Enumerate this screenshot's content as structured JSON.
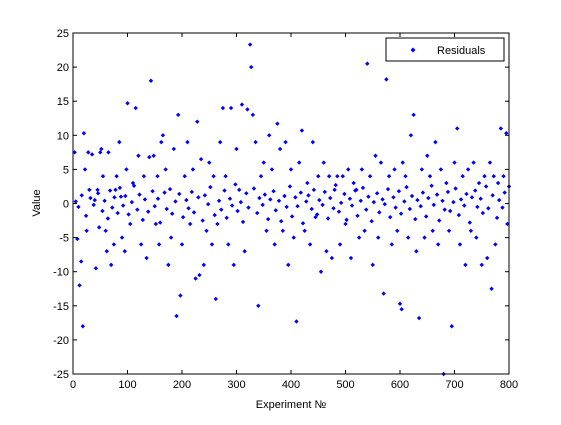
{
  "chart_data": {
    "type": "scatter",
    "title": "",
    "xlabel": "Experiment №",
    "ylabel": "Value",
    "xlim": [
      0,
      800
    ],
    "ylim": [
      -25,
      25
    ],
    "x_ticks": [
      "0",
      "100",
      "200",
      "300",
      "400",
      "500",
      "600",
      "700",
      "800"
    ],
    "y_ticks": [
      "25",
      "20",
      "15",
      "10",
      "5",
      "0",
      "-5",
      "-10",
      "-15",
      "-20",
      "-25"
    ],
    "grid": false,
    "legend": "top-right",
    "marker_color": "#0000ff",
    "series": [
      {
        "name": "Residuals",
        "points": [
          [
            3,
            7.5
          ],
          [
            8,
            -5.2
          ],
          [
            12,
            -12
          ],
          [
            15,
            -8.5
          ],
          [
            18,
            -18
          ],
          [
            20,
            10.3
          ],
          [
            22,
            5
          ],
          [
            25,
            -4
          ],
          [
            28,
            7.5
          ],
          [
            30,
            2
          ],
          [
            35,
            7.2
          ],
          [
            40,
            0.5
          ],
          [
            42,
            -9.5
          ],
          [
            45,
            2
          ],
          [
            48,
            -3.5
          ],
          [
            50,
            7.5
          ],
          [
            52,
            8
          ],
          [
            55,
            4
          ],
          [
            60,
            -4
          ],
          [
            62,
            -7
          ],
          [
            65,
            7.5
          ],
          [
            70,
            -9
          ],
          [
            75,
            -6
          ],
          [
            78,
            2
          ],
          [
            80,
            4
          ],
          [
            85,
            9
          ],
          [
            88,
            1
          ],
          [
            90,
            -5
          ],
          [
            95,
            -7
          ],
          [
            98,
            5
          ],
          [
            100,
            14.7
          ],
          [
            105,
            -3
          ],
          [
            110,
            3
          ],
          [
            115,
            14
          ],
          [
            120,
            7
          ],
          [
            125,
            -6
          ],
          [
            130,
            4
          ],
          [
            135,
            -8
          ],
          [
            140,
            6.8
          ],
          [
            143,
            18
          ],
          [
            148,
            7
          ],
          [
            152,
            -3
          ],
          [
            155,
            4
          ],
          [
            158,
            -6
          ],
          [
            162,
            9
          ],
          [
            165,
            10
          ],
          [
            170,
            5
          ],
          [
            175,
            -9
          ],
          [
            180,
            -5
          ],
          [
            185,
            8
          ],
          [
            190,
            -16.5
          ],
          [
            193,
            13
          ],
          [
            197,
            -13.5
          ],
          [
            200,
            -6
          ],
          [
            205,
            4
          ],
          [
            210,
            9
          ],
          [
            215,
            -3
          ],
          [
            220,
            5
          ],
          [
            225,
            -11
          ],
          [
            228,
            12
          ],
          [
            232,
            -10.5
          ],
          [
            235,
            6.5
          ],
          [
            240,
            -9
          ],
          [
            245,
            -4
          ],
          [
            250,
            6
          ],
          [
            255,
            -6
          ],
          [
            258,
            4
          ],
          [
            262,
            -14
          ],
          [
            265,
            -3
          ],
          [
            270,
            9
          ],
          [
            275,
            14
          ],
          [
            280,
            4
          ],
          [
            285,
            -6
          ],
          [
            290,
            14
          ],
          [
            295,
            -9
          ],
          [
            300,
            8
          ],
          [
            305,
            2
          ],
          [
            310,
            14.5
          ],
          [
            315,
            -7
          ],
          [
            320,
            13.8
          ],
          [
            325,
            23.3
          ],
          [
            327,
            20
          ],
          [
            330,
            13
          ],
          [
            335,
            9
          ],
          [
            340,
            -15
          ],
          [
            345,
            4
          ],
          [
            350,
            6
          ],
          [
            355,
            -4
          ],
          [
            360,
            10
          ],
          [
            365,
            5
          ],
          [
            370,
            -6
          ],
          [
            375,
            11.7
          ],
          [
            380,
            8
          ],
          [
            385,
            -4
          ],
          [
            390,
            9
          ],
          [
            395,
            -9
          ],
          [
            400,
            5
          ],
          [
            405,
            -5
          ],
          [
            410,
            -17.3
          ],
          [
            415,
            6
          ],
          [
            420,
            10.7
          ],
          [
            425,
            -4
          ],
          [
            430,
            3
          ],
          [
            435,
            -6
          ],
          [
            440,
            9
          ],
          [
            445,
            -2
          ],
          [
            450,
            4
          ],
          [
            455,
            -10
          ],
          [
            460,
            6
          ],
          [
            465,
            -7
          ],
          [
            470,
            4
          ],
          [
            475,
            -8
          ],
          [
            480,
            2
          ],
          [
            485,
            4
          ],
          [
            490,
            -6
          ],
          [
            495,
            4
          ],
          [
            500,
            -3
          ],
          [
            505,
            5
          ],
          [
            510,
            -8
          ],
          [
            515,
            3
          ],
          [
            520,
            2
          ],
          [
            525,
            -5
          ],
          [
            530,
            5
          ],
          [
            535,
            -4
          ],
          [
            540,
            20.5
          ],
          [
            545,
            4
          ],
          [
            550,
            -9
          ],
          [
            555,
            7
          ],
          [
            560,
            -5
          ],
          [
            565,
            6
          ],
          [
            570,
            -13.2
          ],
          [
            575,
            18.2
          ],
          [
            580,
            4
          ],
          [
            585,
            -6
          ],
          [
            590,
            5
          ],
          [
            595,
            -4
          ],
          [
            600,
            -14.7
          ],
          [
            603,
            -15.5
          ],
          [
            605,
            6
          ],
          [
            610,
            4
          ],
          [
            615,
            -5
          ],
          [
            620,
            10
          ],
          [
            625,
            13
          ],
          [
            630,
            -7
          ],
          [
            635,
            -16.8
          ],
          [
            640,
            5
          ],
          [
            645,
            -5
          ],
          [
            650,
            7
          ],
          [
            655,
            4
          ],
          [
            660,
            -4
          ],
          [
            665,
            9
          ],
          [
            670,
            -6
          ],
          [
            675,
            5
          ],
          [
            680,
            -25
          ],
          [
            685,
            3
          ],
          [
            690,
            -4
          ],
          [
            695,
            -18
          ],
          [
            700,
            6
          ],
          [
            705,
            11
          ],
          [
            710,
            -6
          ],
          [
            715,
            4
          ],
          [
            720,
            -9
          ],
          [
            725,
            5
          ],
          [
            730,
            -4
          ],
          [
            735,
            6
          ],
          [
            740,
            -5
          ],
          [
            745,
            3
          ],
          [
            750,
            -9
          ],
          [
            755,
            4
          ],
          [
            760,
            -8
          ],
          [
            765,
            6
          ],
          [
            768,
            -12.5
          ],
          [
            772,
            4
          ],
          [
            775,
            -6
          ],
          [
            780,
            3
          ],
          [
            785,
            11
          ],
          [
            790,
            4
          ],
          [
            795,
            10.3
          ],
          [
            797,
            -3
          ],
          [
            800,
            2.5
          ],
          [
            5,
            0.3
          ],
          [
            10,
            -0.5
          ],
          [
            16,
            1.2
          ],
          [
            24,
            -1.8
          ],
          [
            32,
            0.8
          ],
          [
            38,
            -0.2
          ],
          [
            46,
            1.5
          ],
          [
            54,
            -1.1
          ],
          [
            58,
            0.4
          ],
          [
            64,
            -2.2
          ],
          [
            68,
            1.9
          ],
          [
            72,
            -0.6
          ],
          [
            76,
            0.9
          ],
          [
            82,
            -1.4
          ],
          [
            86,
            2.3
          ],
          [
            92,
            -0.3
          ],
          [
            96,
            1.1
          ],
          [
            102,
            -1.6
          ],
          [
            108,
            0.2
          ],
          [
            112,
            2.6
          ],
          [
            118,
            -0.9
          ],
          [
            122,
            1.3
          ],
          [
            128,
            -2.4
          ],
          [
            132,
            0.6
          ],
          [
            138,
            -1.2
          ],
          [
            146,
            1.8
          ],
          [
            150,
            -0.4
          ],
          [
            156,
            0.7
          ],
          [
            160,
            -2.8
          ],
          [
            168,
            1.6
          ],
          [
            172,
            -0.8
          ],
          [
            178,
            2.1
          ],
          [
            182,
            -1.5
          ],
          [
            188,
            0.3
          ],
          [
            195,
            1.4
          ],
          [
            202,
            -2
          ],
          [
            208,
            0.5
          ],
          [
            212,
            -0.7
          ],
          [
            218,
            1.7
          ],
          [
            222,
            -1.3
          ],
          [
            230,
            0.9
          ],
          [
            238,
            -2.5
          ],
          [
            242,
            1.2
          ],
          [
            248,
            -0.1
          ],
          [
            252,
            2.4
          ],
          [
            260,
            -1.7
          ],
          [
            268,
            0.4
          ],
          [
            272,
            -0.9
          ],
          [
            278,
            1.9
          ],
          [
            282,
            -2.1
          ],
          [
            288,
            0.7
          ],
          [
            292,
            -0.3
          ],
          [
            298,
            2.8
          ],
          [
            302,
            -1.1
          ],
          [
            308,
            0.2
          ],
          [
            312,
            -2.7
          ],
          [
            318,
            1.5
          ],
          [
            322,
            -0.6
          ],
          [
            332,
            2.2
          ],
          [
            338,
            -1.4
          ],
          [
            342,
            0.8
          ],
          [
            348,
            -0.2
          ],
          [
            352,
            1.3
          ],
          [
            358,
            -2.3
          ],
          [
            362,
            0.6
          ],
          [
            368,
            1.8
          ],
          [
            372,
            -1
          ],
          [
            378,
            0.4
          ],
          [
            382,
            -2.6
          ],
          [
            388,
            1.1
          ],
          [
            392,
            -0.5
          ],
          [
            398,
            2.5
          ],
          [
            402,
            -1.9
          ],
          [
            408,
            0.9
          ],
          [
            412,
            -0.4
          ],
          [
            418,
            1.6
          ],
          [
            422,
            -2.9
          ],
          [
            428,
            0.3
          ],
          [
            432,
            1.2
          ],
          [
            438,
            -0.8
          ],
          [
            442,
            2
          ],
          [
            448,
            -1.6
          ],
          [
            452,
            0.5
          ],
          [
            458,
            -0.2
          ],
          [
            462,
            1.7
          ],
          [
            468,
            -2.2
          ],
          [
            472,
            0.8
          ],
          [
            478,
            -0.7
          ],
          [
            482,
            2.7
          ],
          [
            488,
            -1.2
          ],
          [
            492,
            0.1
          ],
          [
            498,
            1.4
          ],
          [
            502,
            -2.4
          ],
          [
            508,
            0.7
          ],
          [
            512,
            -0.3
          ],
          [
            518,
            1.9
          ],
          [
            522,
            -1.8
          ],
          [
            528,
            0.4
          ],
          [
            532,
            2.3
          ],
          [
            538,
            -0.9
          ],
          [
            542,
            1
          ],
          [
            548,
            -2.6
          ],
          [
            552,
            0.2
          ],
          [
            558,
            1.5
          ],
          [
            562,
            -1.3
          ],
          [
            568,
            0.6
          ],
          [
            572,
            -0.1
          ],
          [
            578,
            2.1
          ],
          [
            582,
            -2
          ],
          [
            588,
            0.9
          ],
          [
            592,
            -0.6
          ],
          [
            598,
            1.8
          ],
          [
            602,
            -1.5
          ],
          [
            608,
            0.3
          ],
          [
            612,
            2.4
          ],
          [
            618,
            -0.8
          ],
          [
            622,
            1.1
          ],
          [
            628,
            -2.3
          ],
          [
            632,
            0.5
          ],
          [
            638,
            -0.4
          ],
          [
            642,
            1.6
          ],
          [
            648,
            -1.9
          ],
          [
            652,
            0.8
          ],
          [
            658,
            2.6
          ],
          [
            662,
            -0.2
          ],
          [
            668,
            1.3
          ],
          [
            672,
            -2.5
          ],
          [
            678,
            0.4
          ],
          [
            682,
            -0.9
          ],
          [
            688,
            1.7
          ],
          [
            692,
            -1.1
          ],
          [
            698,
            0.2
          ],
          [
            702,
            2.2
          ],
          [
            708,
            -1.7
          ],
          [
            712,
            0.6
          ],
          [
            718,
            -0.3
          ],
          [
            722,
            1.4
          ],
          [
            728,
            -2.8
          ],
          [
            732,
            0.9
          ],
          [
            738,
            1.9
          ],
          [
            742,
            -0.5
          ],
          [
            748,
            0.7
          ],
          [
            752,
            -1.4
          ],
          [
            758,
            2.5
          ],
          [
            762,
            -0.7
          ],
          [
            770,
            1.2
          ],
          [
            778,
            -2.1
          ],
          [
            782,
            0.5
          ],
          [
            788,
            -0.6
          ],
          [
            792,
            1.6
          ]
        ]
      }
    ]
  }
}
